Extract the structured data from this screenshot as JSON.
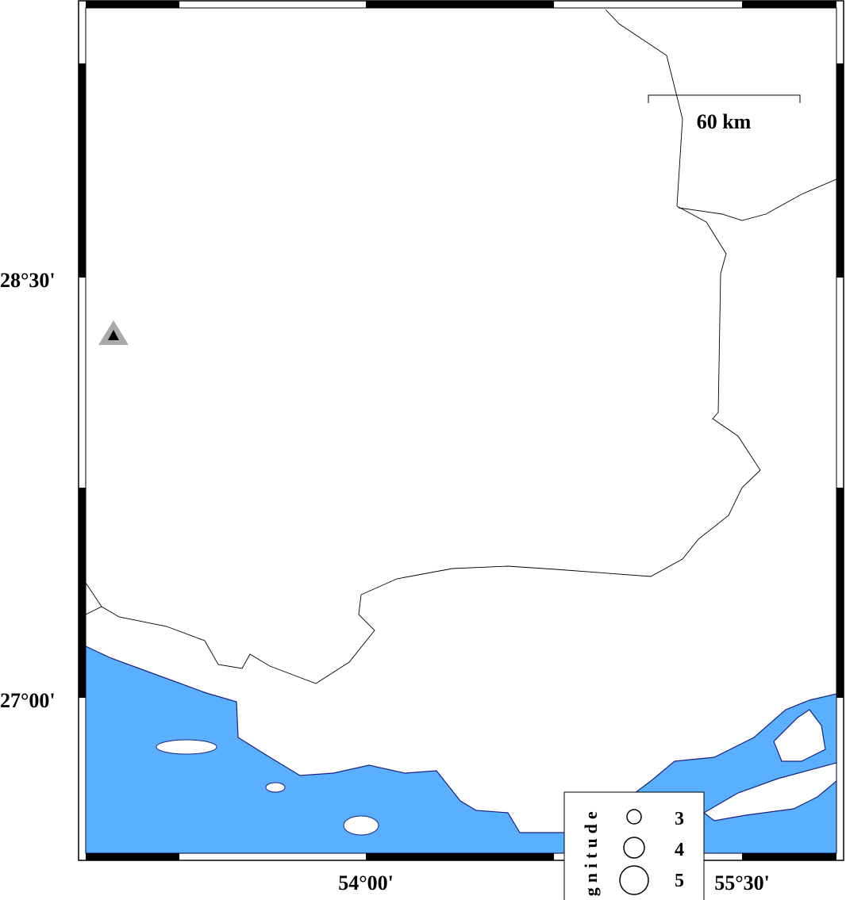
{
  "map": {
    "lat_labels": [
      "28°30'",
      "27°00'"
    ],
    "lon_labels": [
      "54°00'",
      "55°30'"
    ],
    "scale_bar": "60 km",
    "legend": {
      "title": "Magnitude",
      "items": [
        "3",
        "4",
        "5"
      ]
    }
  }
}
